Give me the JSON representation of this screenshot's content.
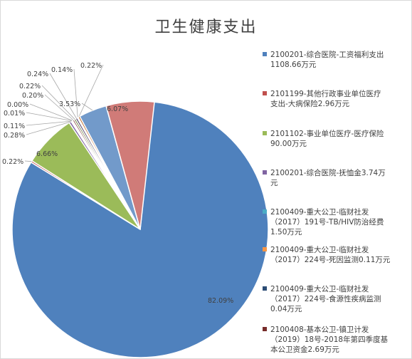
{
  "chart_data": {
    "type": "pie",
    "title": "卫生健康支出",
    "series": [
      {
        "name": "2100201-综合医院-工资福利支出1108.66万元",
        "value": 82.09,
        "label": "82.09%",
        "color": "#4f81bd"
      },
      {
        "name": "2101199-其他行政事业单位医疗支出-大病保险2.96万元",
        "value": 0.22,
        "label": "0.22%",
        "color": "#c0504d"
      },
      {
        "name": "2101102-事业单位医疗-医疗保险90.00万元",
        "value": 6.66,
        "label": "6.66%",
        "color": "#9bbb59"
      },
      {
        "name": "2100201-综合医院-抚恤金3.74万元",
        "value": 0.28,
        "label": "0.28%",
        "color": "#8064a2"
      },
      {
        "name": "2100409-重大公卫-临财社发（2017）191号-TB/HIV防治经费1.50万元",
        "value": 0.11,
        "label": "0.11%",
        "color": "#4bacc6"
      },
      {
        "name": "2100409-重大公卫-临财社发（2017）224号-死因监测0.11万元",
        "value": 0.01,
        "label": "0.01%",
        "color": "#f79646"
      },
      {
        "name": "2100409-重大公卫-临财社发（2017）224号-食源性疾病监测0.04万元",
        "value": 0.0,
        "label": "0.00%",
        "color": "#2c4d75"
      },
      {
        "name": "2100408-基本公卫-镇卫计发（2019）18号-2018年第四季度基本公卫资金2.69万元",
        "value": 0.2,
        "label": "0.20%",
        "color": "#772c2a"
      },
      {
        "name": "",
        "value": 0.22,
        "label": "0.22%",
        "color": "#5f7530"
      },
      {
        "name": "",
        "value": 0.24,
        "label": "0.24%",
        "color": "#4d3b62"
      },
      {
        "name": "",
        "value": 0.14,
        "label": "0.14%",
        "color": "#276a7c"
      },
      {
        "name": "",
        "value": 0.22,
        "label": "0.22%",
        "color": "#b65708"
      },
      {
        "name": "",
        "value": 3.53,
        "label": "3.53%",
        "color": "#729aca"
      },
      {
        "name": "",
        "value": 6.07,
        "label": "6.07%",
        "color": "#d07b78"
      }
    ],
    "legend_position": "right"
  }
}
